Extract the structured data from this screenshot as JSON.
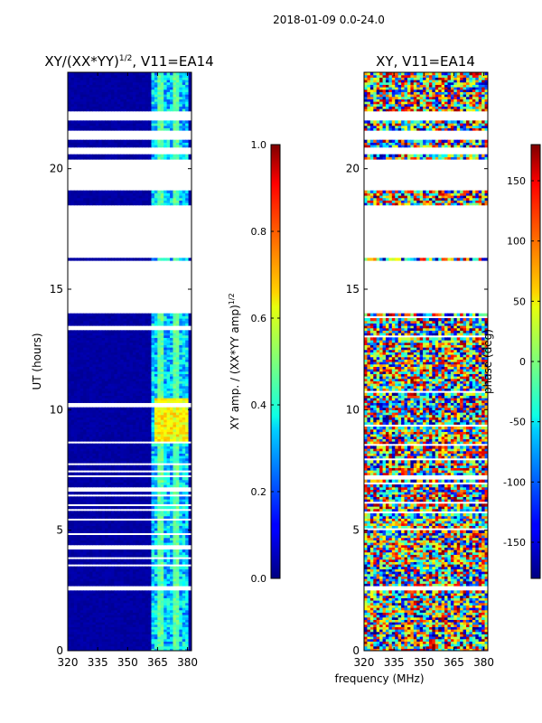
{
  "suptitle": "2018-01-09 0.0-24.0",
  "shared_xlabel": "frequency (MHz)",
  "chart_data": [
    {
      "type": "heatmap",
      "title": "XY/(XX*YY)^1/2, V11=EA14",
      "title_main": "XY/(XX*YY)",
      "title_sup": "1/2",
      "title_tail": ", V11=EA14",
      "xlabel": "frequency (MHz)",
      "ylabel": "UT (hours)",
      "xlim": [
        320,
        382
      ],
      "ylim": [
        0,
        24
      ],
      "xticks": [
        320,
        335,
        350,
        365,
        380
      ],
      "yticks": [
        0,
        5,
        10,
        15,
        20
      ],
      "colorbar": {
        "label_main": "XY amp. / (XX*YY amp)",
        "label_sup": "1/2",
        "label": "XY amp. / (XX*YY amp)^1/2",
        "range": [
          0.0,
          1.0
        ],
        "ticks": [
          "0.0",
          "0.2",
          "0.4",
          "0.6",
          "0.8",
          "1.0"
        ],
        "colormap": "jet"
      },
      "data_gaps_hours": [
        [
          2.5,
          2.7
        ],
        [
          4.85,
          4.95
        ],
        [
          6.6,
          6.75
        ],
        [
          7.25,
          7.35
        ],
        [
          14.0,
          16.2
        ],
        [
          16.35,
          18.5
        ],
        [
          19.1,
          20.4
        ],
        [
          20.65,
          20.95
        ],
        [
          21.2,
          21.6
        ],
        [
          22.0,
          22.4
        ]
      ],
      "bright_band_mhz": [
        362,
        381
      ],
      "peak_region": {
        "freq_mhz": [
          363,
          381
        ],
        "ut_hours": [
          8.6,
          10.5
        ],
        "value": 0.7
      }
    },
    {
      "type": "heatmap",
      "title": "XY, V11=EA14",
      "xlabel": "frequency (MHz)",
      "ylabel": "",
      "xlim": [
        320,
        382
      ],
      "ylim": [
        0,
        24
      ],
      "xticks": [
        320,
        335,
        350,
        365,
        380
      ],
      "yticks": [
        0,
        5,
        10,
        15,
        20
      ],
      "colorbar": {
        "label": "phase (deg)",
        "range": [
          -180,
          180
        ],
        "ticks": [
          "-150",
          "-100",
          "-50",
          "0",
          "50",
          "100",
          "150"
        ],
        "tick_values": [
          -150,
          -100,
          -50,
          0,
          50,
          100,
          150
        ],
        "colormap": "jet"
      },
      "data_gaps_hours": [
        [
          2.5,
          2.7
        ],
        [
          14.0,
          16.2
        ],
        [
          16.35,
          18.5
        ],
        [
          19.1,
          20.4
        ],
        [
          20.65,
          20.95
        ],
        [
          21.2,
          21.6
        ],
        [
          22.0,
          22.4
        ]
      ]
    }
  ]
}
